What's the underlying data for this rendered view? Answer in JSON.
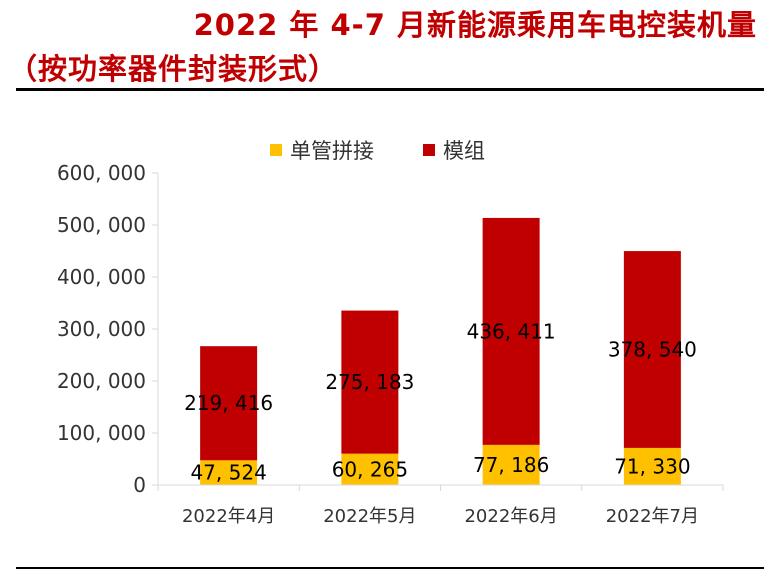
{
  "header": {
    "title_line1": "2022 年 4-7 月新能源乘用车电控装机量",
    "title_line2": "（按功率器件封装形式）"
  },
  "colors": {
    "title": "#c00000",
    "series_single_tube": "#ffc000",
    "series_module": "#c00000",
    "axis": "#d9d9d9"
  },
  "chart_data": {
    "type": "bar",
    "stacked": true,
    "title": "2022 年 4-7 月新能源乘用车电控装机量（按功率器件封装形式）",
    "categories": [
      "2022年4月",
      "2022年5月",
      "2022年6月",
      "2022年7月"
    ],
    "series": [
      {
        "name": "单管拼接",
        "values": [
          47524,
          60265,
          77186,
          71330
        ],
        "labels": [
          "47, 524",
          "60, 265",
          "77, 186",
          "71, 330"
        ]
      },
      {
        "name": "模组",
        "values": [
          219416,
          275183,
          436411,
          378540
        ],
        "labels": [
          "219, 416",
          "275, 183",
          "436, 411",
          "378, 540"
        ]
      }
    ],
    "ylim": [
      0,
      600000
    ],
    "yticks": [
      0,
      100000,
      200000,
      300000,
      400000,
      500000,
      600000
    ],
    "ytick_labels": [
      "0",
      "100, 000",
      "200, 000",
      "300, 000",
      "400, 000",
      "500, 000",
      "600, 000"
    ],
    "xlabel": "",
    "ylabel": "",
    "legend_position": "top-center",
    "grid": false
  }
}
